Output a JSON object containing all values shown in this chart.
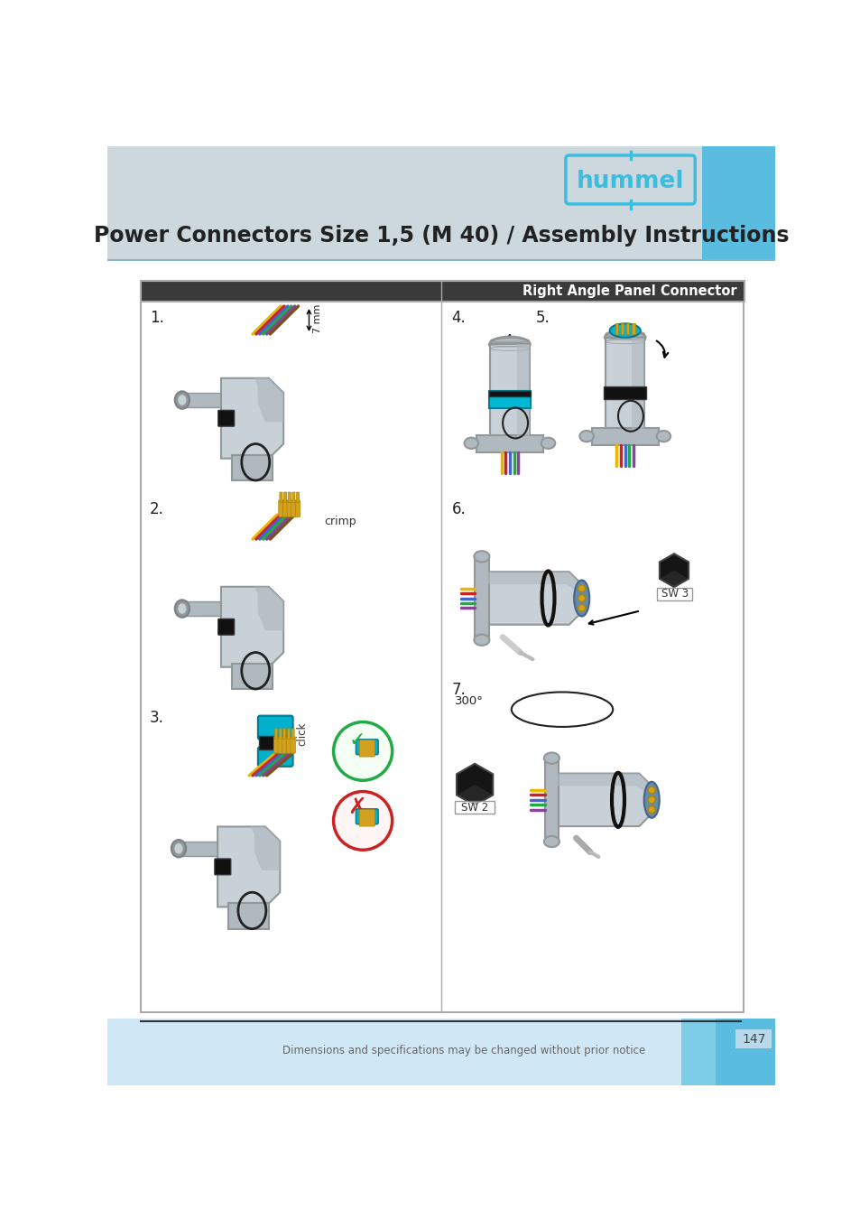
{
  "title": "Power Connectors Size 1,5 (M 40) / Assembly Instructions",
  "subtitle": "Right Angle Panel Connector",
  "footer_text": "Dimensions and specifications may be changed without prior notice",
  "page_number": "147",
  "header_bg": "#ccd8de",
  "right_blue_top": "#5abde0",
  "content_bg": "#ffffff",
  "footer_bg": "#ffffff",
  "bottom_gradient_left": "#daeef8",
  "bottom_gradient_right": "#5abde0",
  "box_border": "#aaaaaa",
  "header_row_bg": "#404040",
  "header_row_text": "#ffffff",
  "dark_text": "#222222",
  "medium_text": "#555555",
  "hummel_cyan": "#3bbde0",
  "wire_yellow": "#e8b800",
  "wire_red": "#cc2222",
  "wire_blue": "#4466cc",
  "wire_green": "#22aa44",
  "wire_purple": "#884499",
  "wire_brown": "#7a5020",
  "connector_light": "#c8d0d8",
  "connector_mid": "#b0b8c0",
  "connector_dark": "#909898",
  "connector_shadow": "#7a8288",
  "crimp_gold": "#d4a020"
}
